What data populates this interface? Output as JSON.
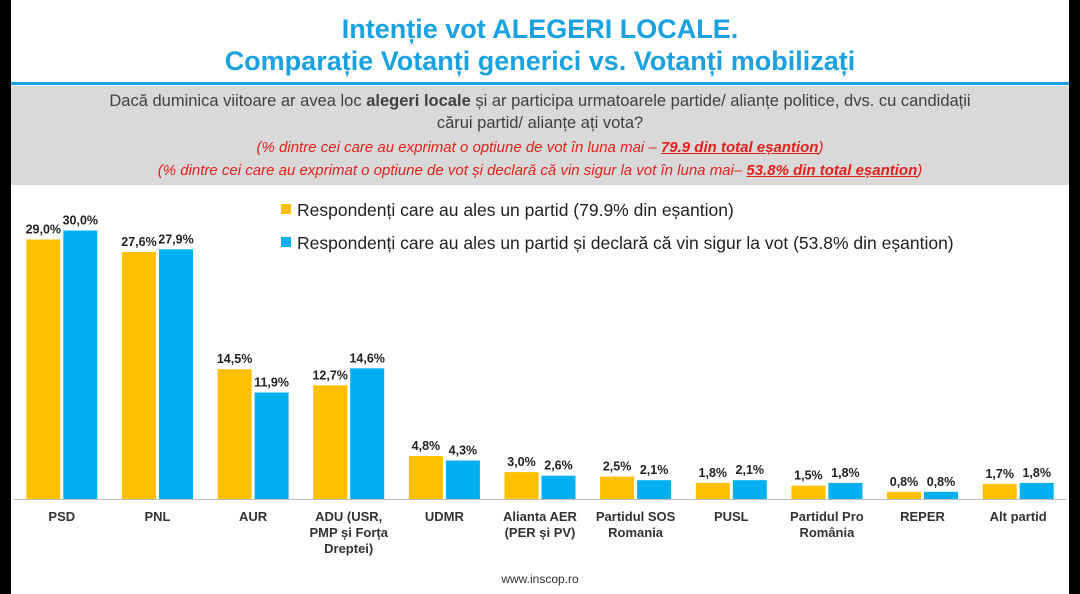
{
  "header": {
    "title_line1": "Intenție vot ALEGERI LOCALE.",
    "title_line2": "Comparație Votanți generici vs. Votanți mobilizați"
  },
  "question": {
    "line1_before": "Dacă duminica viitoare ar avea loc ",
    "line1_bold": "alegeri locale",
    "line1_after": " și ar participa urmatoarele partide/ alianțe politice, dvs. cu candidații",
    "line2": "cărui partid/ alianțe ați vota?",
    "note1_text": "(% dintre cei care au exprimat o optiune de vot în luna mai – ",
    "note1_value": "79.9 din total eșantion",
    "note1_end": ")",
    "note2_text": "(% dintre cei care au exprimat o optiune de vot și declară că vin sigur la vot în luna mai– ",
    "note2_value": "53.8% din total eșantion",
    "note2_end": ")"
  },
  "colors": {
    "series1": "#ffc000",
    "series2": "#00b0f0",
    "accent": "#1aa1e0",
    "note_red": "#e3211c"
  },
  "source": "www.inscop.ro",
  "chart_data": {
    "type": "bar",
    "title": "Intenție vot ALEGERI LOCALE. Comparație Votanți generici vs. Votanți mobilizați",
    "categories": [
      "PSD",
      "PNL",
      "AUR",
      "ADU (USR, PMP și Forța Dreptei)",
      "UDMR",
      "Alianta AER (PER și PV)",
      "Partidul SOS Romania",
      "PUSL",
      "Partidul Pro România",
      "REPER",
      "Alt partid"
    ],
    "category_lines": [
      [
        "PSD"
      ],
      [
        "PNL"
      ],
      [
        "AUR"
      ],
      [
        "ADU (USR,",
        "PMP și Forța",
        "Dreptei)"
      ],
      [
        "UDMR"
      ],
      [
        "Alianta AER",
        "(PER și PV)"
      ],
      [
        "Partidul SOS",
        "Romania"
      ],
      [
        "PUSL"
      ],
      [
        "Partidul Pro",
        "România"
      ],
      [
        "REPER"
      ],
      [
        "Alt partid"
      ]
    ],
    "series": [
      {
        "name": "Respondenți care au ales un partid (79.9% din eșantion)",
        "values": [
          29.0,
          27.6,
          14.5,
          12.7,
          4.8,
          3.0,
          2.5,
          1.8,
          1.5,
          0.8,
          1.7
        ],
        "labels": [
          "29,0%",
          "27,6%",
          "14,5%",
          "12,7%",
          "4,8%",
          "3,0%",
          "2,5%",
          "1,8%",
          "1,5%",
          "0,8%",
          "1,7%"
        ]
      },
      {
        "name": "Respondenți care au ales un partid și declară că vin sigur la vot (53.8% din eșantion)",
        "values": [
          30.0,
          27.9,
          11.9,
          14.6,
          4.3,
          2.6,
          2.1,
          2.1,
          1.8,
          0.8,
          1.8
        ],
        "labels": [
          "30,0%",
          "27,9%",
          "11,9%",
          "14,6%",
          "4,3%",
          "2,6%",
          "2,1%",
          "2,1%",
          "1,8%",
          "0,8%",
          "1,8%"
        ]
      }
    ],
    "ylim": [
      0,
      30
    ],
    "xlabel": "",
    "ylabel": "",
    "legend_position": "top-right"
  }
}
